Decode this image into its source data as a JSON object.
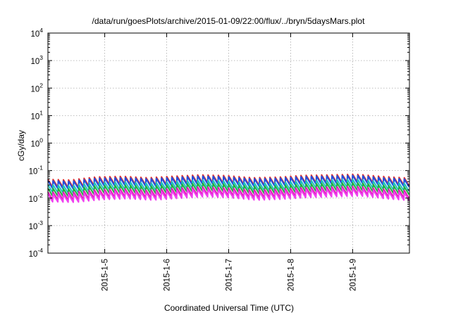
{
  "chart_data": {
    "type": "line",
    "title": "/data/run/goesPlots/archive/2015-01-09/22:00/flux/../bryn/5daysMars.plot",
    "xlabel": "Coordinated Universal Time (UTC)",
    "ylabel": "cGy/day",
    "scale_y": "log",
    "grid": true,
    "legend": "none",
    "xlim": [
      "2015-01-04T02:00",
      "2015-01-09T22:00"
    ],
    "ylim": [
      0.0001,
      10000
    ],
    "x_ticks": [
      "2015-1-5",
      "2015-1-6",
      "2015-1-7",
      "2015-1-8",
      "2015-1-9"
    ],
    "y_ticks": [
      {
        "base": "10",
        "exp": "-4",
        "value": 0.0001
      },
      {
        "base": "10",
        "exp": "-3",
        "value": 0.001
      },
      {
        "base": "10",
        "exp": "-2",
        "value": 0.01
      },
      {
        "base": "10",
        "exp": "-1",
        "value": 0.1
      },
      {
        "base": "10",
        "exp": "0",
        "value": 1
      },
      {
        "base": "10",
        "exp": "1",
        "value": 10
      },
      {
        "base": "10",
        "exp": "2",
        "value": 100
      },
      {
        "base": "10",
        "exp": "3",
        "value": 1000
      },
      {
        "base": "10",
        "exp": "4",
        "value": 10000
      }
    ],
    "series": [
      {
        "color": "#e03030",
        "values": [
          0.036,
          0.034,
          0.044,
          0.046,
          0.041,
          0.047,
          0.052,
          0.049,
          0.041,
          0.043,
          0.05,
          0.052,
          0.055,
          0.046,
          0.04
        ]
      },
      {
        "color": "#2050e0",
        "values": [
          0.032,
          0.03,
          0.039,
          0.041,
          0.037,
          0.042,
          0.047,
          0.044,
          0.037,
          0.039,
          0.045,
          0.047,
          0.05,
          0.041,
          0.036
        ]
      },
      {
        "color": "#20c0c0",
        "values": [
          0.023,
          0.021,
          0.028,
          0.029,
          0.026,
          0.03,
          0.034,
          0.031,
          0.026,
          0.027,
          0.032,
          0.034,
          0.036,
          0.029,
          0.025
        ]
      },
      {
        "color": "#20b040",
        "values": [
          0.017,
          0.016,
          0.021,
          0.022,
          0.02,
          0.023,
          0.026,
          0.024,
          0.02,
          0.021,
          0.024,
          0.026,
          0.027,
          0.022,
          0.019
        ]
      },
      {
        "color": "#e020b0",
        "values": [
          0.0125,
          0.012,
          0.015,
          0.016,
          0.0145,
          0.017,
          0.019,
          0.0175,
          0.0145,
          0.0155,
          0.018,
          0.019,
          0.02,
          0.016,
          0.014
        ]
      },
      {
        "color": "#f040f0",
        "values": [
          0.0105,
          0.01,
          0.0125,
          0.0135,
          0.012,
          0.014,
          0.016,
          0.0145,
          0.012,
          0.013,
          0.015,
          0.016,
          0.017,
          0.0135,
          0.0115
        ]
      }
    ],
    "sawtooth_cycles": 70
  }
}
